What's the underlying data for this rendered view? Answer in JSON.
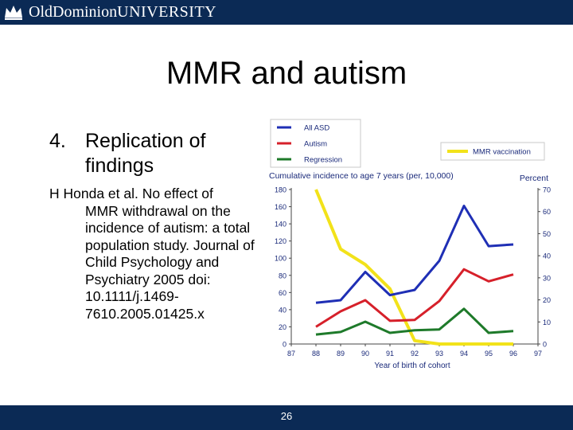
{
  "header": {
    "logo_text_a": "Old",
    "logo_text_b": "Dominion",
    "logo_text_c": "UNIVERSITY",
    "bar_color": "#0b2a55"
  },
  "slide": {
    "title": "MMR and autism",
    "bullet_number": "4.",
    "bullet_text": "Replication of findings",
    "citation_first": "H Honda et al. No effect of",
    "citation_rest": "MMR withdrawal on the incidence of autism: a total population study. Journal of Child Psychology and Psychiatry 2005 doi: 10.1111/j.1469-7610.2005.01425.x"
  },
  "footer": {
    "page_number": "26"
  },
  "chart_data": {
    "type": "line",
    "title": "Cumulative incidence to age 7 years (per, 10,000)",
    "xlabel": "Year of birth of cohort",
    "ylabel": "",
    "y2label": "Percent",
    "x": [
      87,
      88,
      89,
      90,
      91,
      92,
      93,
      94,
      95,
      96,
      97
    ],
    "xlim": [
      87,
      97
    ],
    "ylim": [
      0,
      180
    ],
    "yticks": [
      0,
      20,
      40,
      60,
      80,
      100,
      120,
      140,
      160,
      180
    ],
    "y2lim": [
      0,
      70
    ],
    "y2ticks": [
      0,
      10,
      20,
      30,
      40,
      50,
      60,
      70
    ],
    "grid": false,
    "legend_placement": "top-left",
    "series": [
      {
        "name": "All ASD",
        "axis": "left",
        "color": "#1f2fb5",
        "x": [
          88,
          89,
          90,
          91,
          92,
          93,
          94,
          95,
          96
        ],
        "values": [
          48,
          51,
          84,
          57,
          63,
          97,
          161,
          114,
          116
        ]
      },
      {
        "name": "Autism",
        "axis": "left",
        "color": "#d6202a",
        "x": [
          88,
          89,
          90,
          91,
          92,
          93,
          94,
          95,
          96
        ],
        "values": [
          20,
          38,
          51,
          27,
          28,
          50,
          87,
          73,
          81
        ]
      },
      {
        "name": "Regression",
        "axis": "left",
        "color": "#1e7a2a",
        "x": [
          88,
          89,
          90,
          91,
          92,
          93,
          94,
          95,
          96
        ],
        "values": [
          11,
          14,
          26,
          13,
          16,
          17,
          41,
          13,
          15
        ]
      },
      {
        "name": "MMR vaccination",
        "axis": "right",
        "color": "#f2e21a",
        "x": [
          88,
          89,
          90,
          91,
          92,
          93,
          94,
          95,
          96
        ],
        "values": [
          70,
          43,
          36,
          25,
          1.5,
          0,
          0,
          0,
          0
        ]
      }
    ]
  }
}
